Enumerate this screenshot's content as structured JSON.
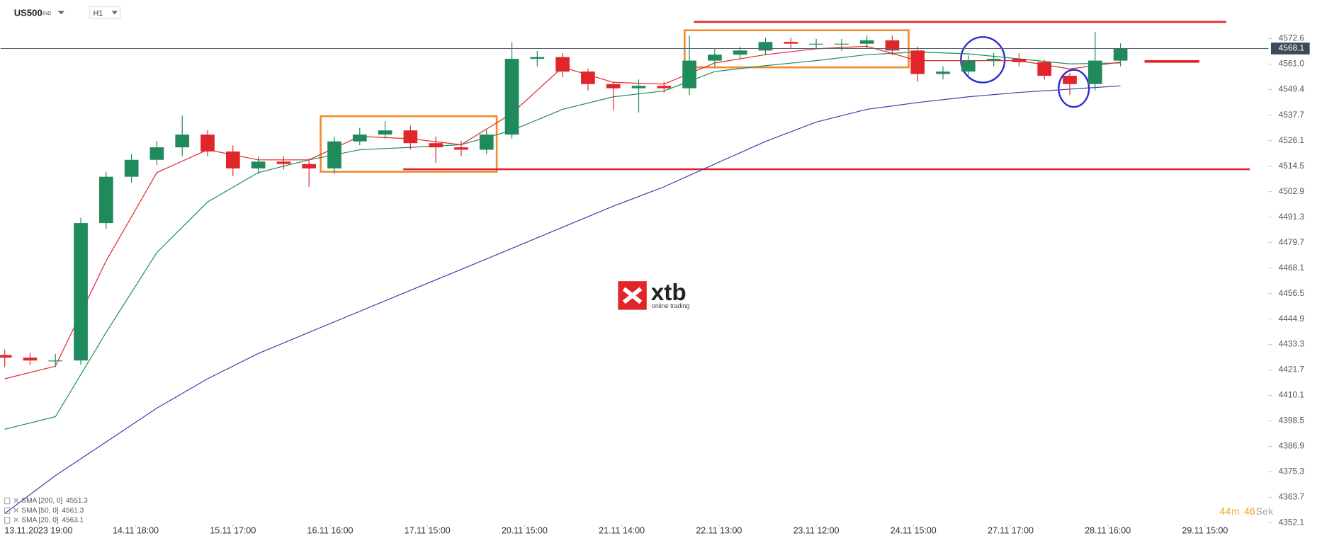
{
  "header": {
    "symbol": "US500",
    "symbol_type": "IND",
    "timeframe": "H1"
  },
  "watermark": {
    "brand": "xtb",
    "tagline": "online trading"
  },
  "timer": {
    "minutes": "44",
    "minutes_unit": "m",
    "seconds": "46",
    "seconds_unit": "Sek"
  },
  "chart_data": {
    "type": "candlestick",
    "up_color": "#1f8a5b",
    "down_color": "#e0262a",
    "x": [
      0,
      6,
      12,
      18,
      24,
      30,
      36,
      42,
      48,
      54,
      60,
      66,
      72,
      78,
      84,
      90,
      96,
      102,
      108,
      114,
      120,
      126,
      132,
      138,
      144,
      150,
      156,
      162,
      168,
      174,
      180,
      186,
      192,
      198,
      204,
      210,
      216,
      222,
      228,
      234,
      240,
      246,
      252,
      258,
      264
    ],
    "open": [
      4428.5,
      4427.3,
      4426,
      4426,
      4488.6,
      4509.7,
      4517.4,
      4523.1,
      4528.9,
      4521.2,
      4513.5,
      4516.6,
      4515.5,
      4513.5,
      4525.8,
      4528.9,
      4530.8,
      4525.0,
      4523.1,
      4522.0,
      4528.9,
      4563.4,
      4564.2,
      4557.6,
      4551.9,
      4550.0,
      4551.1,
      4550.0,
      4562.6,
      4565.3,
      4567.2,
      4571.1,
      4570.3,
      4570.3,
      4570.3,
      4571.8,
      4567.2,
      4556.5,
      4557.6,
      4562.6,
      4563.4,
      4561.9,
      4555.7,
      4551.9,
      4562.6
    ],
    "high": [
      4431,
      4429.5,
      4429,
      4491,
      4512,
      4520,
      4526,
      4537.5,
      4531,
      4524,
      4519,
      4519,
      4518,
      4528,
      4532,
      4535,
      4533,
      4528,
      4526,
      4531,
      4571,
      4567,
      4566,
      4559,
      4553,
      4554,
      4553,
      4574,
      4568,
      4569,
      4573,
      4573,
      4572.5,
      4572.5,
      4574,
      4574,
      4569,
      4560,
      4565,
      4566,
      4566,
      4563,
      4557,
      4575.7,
      4570.5
    ],
    "low": [
      4423,
      4424,
      4423,
      4424,
      4486,
      4507,
      4515,
      4519,
      4519,
      4510,
      4511,
      4513,
      4505,
      4511,
      4524,
      4527,
      4522,
      4516,
      4519,
      4520,
      4527,
      4560,
      4555,
      4549,
      4540,
      4539,
      4548,
      4547,
      4560,
      4563,
      4565,
      4568,
      4568,
      4567,
      4568,
      4565,
      4553,
      4554,
      4555,
      4560,
      4560,
      4554,
      4547,
      4549,
      4560
    ],
    "close": [
      4427.3,
      4426,
      4426,
      4488.6,
      4509.7,
      4517.4,
      4523.1,
      4528.9,
      4521.2,
      4513.5,
      4516.6,
      4515.5,
      4513.5,
      4525.8,
      4528.9,
      4530.8,
      4525.0,
      4523.1,
      4522.0,
      4528.9,
      4563.4,
      4564.2,
      4557.6,
      4551.9,
      4550.0,
      4551.1,
      4550.0,
      4562.6,
      4565.3,
      4567.2,
      4571.1,
      4570.3,
      4570.3,
      4570.3,
      4571.8,
      4567.2,
      4556.5,
      4557.6,
      4562.6,
      4563.4,
      4561.9,
      4555.7,
      4551.9,
      4562.6,
      4568.1
    ],
    "series": [
      {
        "name": "SMA [200, 0]",
        "color": "#3b3fa8",
        "legend_value": 4551.3,
        "x": [
          0,
          12,
          24,
          36,
          48,
          60,
          72,
          84,
          96,
          108,
          120,
          132,
          144,
          156,
          168,
          180,
          192,
          204,
          216,
          228,
          240,
          252,
          264
        ],
        "values": [
          4356.3,
          4373.6,
          4388.9,
          4404.3,
          4417.7,
          4429.2,
          4438.8,
          4448.4,
          4458.0,
          4467.5,
          4477.1,
          4486.7,
          4496.3,
          4505.1,
          4515.5,
          4525.8,
          4534.6,
          4540.4,
          4543.5,
          4546.1,
          4548.1,
          4549.6,
          4551.1
        ]
      },
      {
        "name": "SMA [50, 0]",
        "color": "#1f8a5b",
        "legend_value": 4561.3,
        "x": [
          0,
          12,
          24,
          36,
          48,
          60,
          72,
          84,
          96,
          108,
          120,
          132,
          144,
          156,
          168,
          180,
          192,
          204,
          216,
          228,
          240,
          252,
          264
        ],
        "values": [
          4394.7,
          4400.4,
          4438.8,
          4475.2,
          4498.2,
          4511.6,
          4517.4,
          4522.0,
          4523.1,
          4524.3,
          4530.8,
          4540.4,
          4546.1,
          4548.8,
          4557.6,
          4560.3,
          4562.6,
          4565.3,
          4566.5,
          4565.7,
          4563.4,
          4561.1,
          4561.5
        ]
      },
      {
        "name": "SMA [20, 0]",
        "color": "#e0262a",
        "legend_value": 4563.1,
        "x": [
          0,
          12,
          24,
          36,
          48,
          60,
          72,
          84,
          96,
          108,
          120,
          132,
          144,
          156,
          168,
          180,
          192,
          204,
          216,
          228,
          240,
          252,
          264
        ],
        "values": [
          4417.7,
          4423.4,
          4471.4,
          4511.6,
          4522.0,
          4517.4,
          4517.4,
          4528.1,
          4527.0,
          4524.3,
          4538.5,
          4559.6,
          4552.7,
          4551.9,
          4561.5,
          4565.3,
          4568.0,
          4569.1,
          4562.6,
          4562.6,
          4562.6,
          4558.8,
          4561.9
        ]
      }
    ],
    "current_price": 4568.1,
    "xlim": [
      -1,
      299
    ],
    "xticks": [
      {
        "value": 8,
        "label": "13.11.2023 19:00"
      },
      {
        "value": 31,
        "label": "14.11 18:00"
      },
      {
        "value": 54,
        "label": "15.11 17:00"
      },
      {
        "value": 77,
        "label": "16.11 16:00"
      },
      {
        "value": 100,
        "label": "17.11 15:00"
      },
      {
        "value": 123,
        "label": "20.11 15:00"
      },
      {
        "value": 146,
        "label": "21.11 14:00"
      },
      {
        "value": 169,
        "label": "22.11 13:00"
      },
      {
        "value": 192,
        "label": "23.11 12:00"
      },
      {
        "value": 215,
        "label": "24.11 15:00"
      },
      {
        "value": 238,
        "label": "27.11 17:00"
      },
      {
        "value": 261,
        "label": "28.11 16:00"
      },
      {
        "value": 284,
        "label": "29.11 15:00"
      }
    ],
    "ylim": [
      4351.7,
      4590.2
    ],
    "yticks": [
      4352.1,
      4363.7,
      4375.3,
      4386.9,
      4398.5,
      4410.1,
      4421.7,
      4433.3,
      4444.9,
      4456.5,
      4468.1,
      4479.7,
      4491.3,
      4502.9,
      4514.5,
      4526.1,
      4537.7,
      4549.4,
      {
        "value": 4561,
        "label": "4561.0"
      },
      4572.6
    ]
  }
}
